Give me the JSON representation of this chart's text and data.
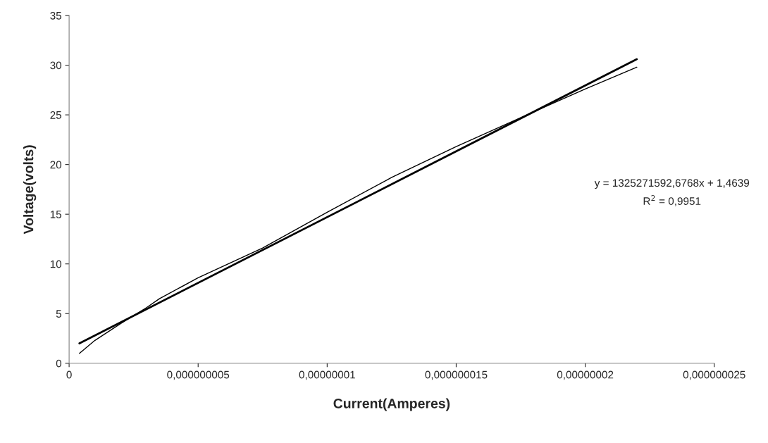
{
  "chart_data": {
    "type": "line",
    "xlabel": "Current(Amperes)",
    "ylabel": "Voltage(volts)",
    "series": [
      {
        "color": "#000000",
        "x": [
          4e-10,
          1e-09,
          2e-09,
          3e-09,
          3.5e-09,
          5e-09,
          7.5e-09,
          1e-08,
          1.25e-08,
          1.5e-08,
          1.8e-08,
          2e-08,
          2.2e-08
        ],
        "values": [
          1.0,
          2.3,
          4.0,
          5.6,
          6.5,
          8.6,
          11.6,
          15.2,
          18.7,
          21.8,
          25.3,
          27.6,
          29.8
        ]
      },
      {
        "type": "line",
        "color": "#000000",
        "x": [
          4e-10,
          2.2e-08
        ],
        "values": [
          2.0,
          30.6
        ]
      }
    ],
    "xlim": [
      0,
      2.5e-08
    ],
    "xticks": [
      0,
      {
        "value": 5e-09,
        "label": "0,000000005"
      },
      {
        "value": 1e-08,
        "label": "0,00000001"
      },
      {
        "value": 1.5e-08,
        "label": "0,000000015"
      },
      {
        "value": 2e-08,
        "label": "0,00000002"
      },
      {
        "value": 2.5e-08,
        "label": "0,000000025"
      }
    ],
    "ylim": [
      0,
      35
    ],
    "yticks": [
      0,
      5,
      10,
      15,
      20,
      25,
      30,
      35
    ],
    "annotations": [
      "y = 1325271592,6768x + 1,4639",
      "R$^{2}$ = 0,9951"
    ],
    "grid": false,
    "legend": false,
    "marker": "none",
    "line_style": "solid"
  }
}
